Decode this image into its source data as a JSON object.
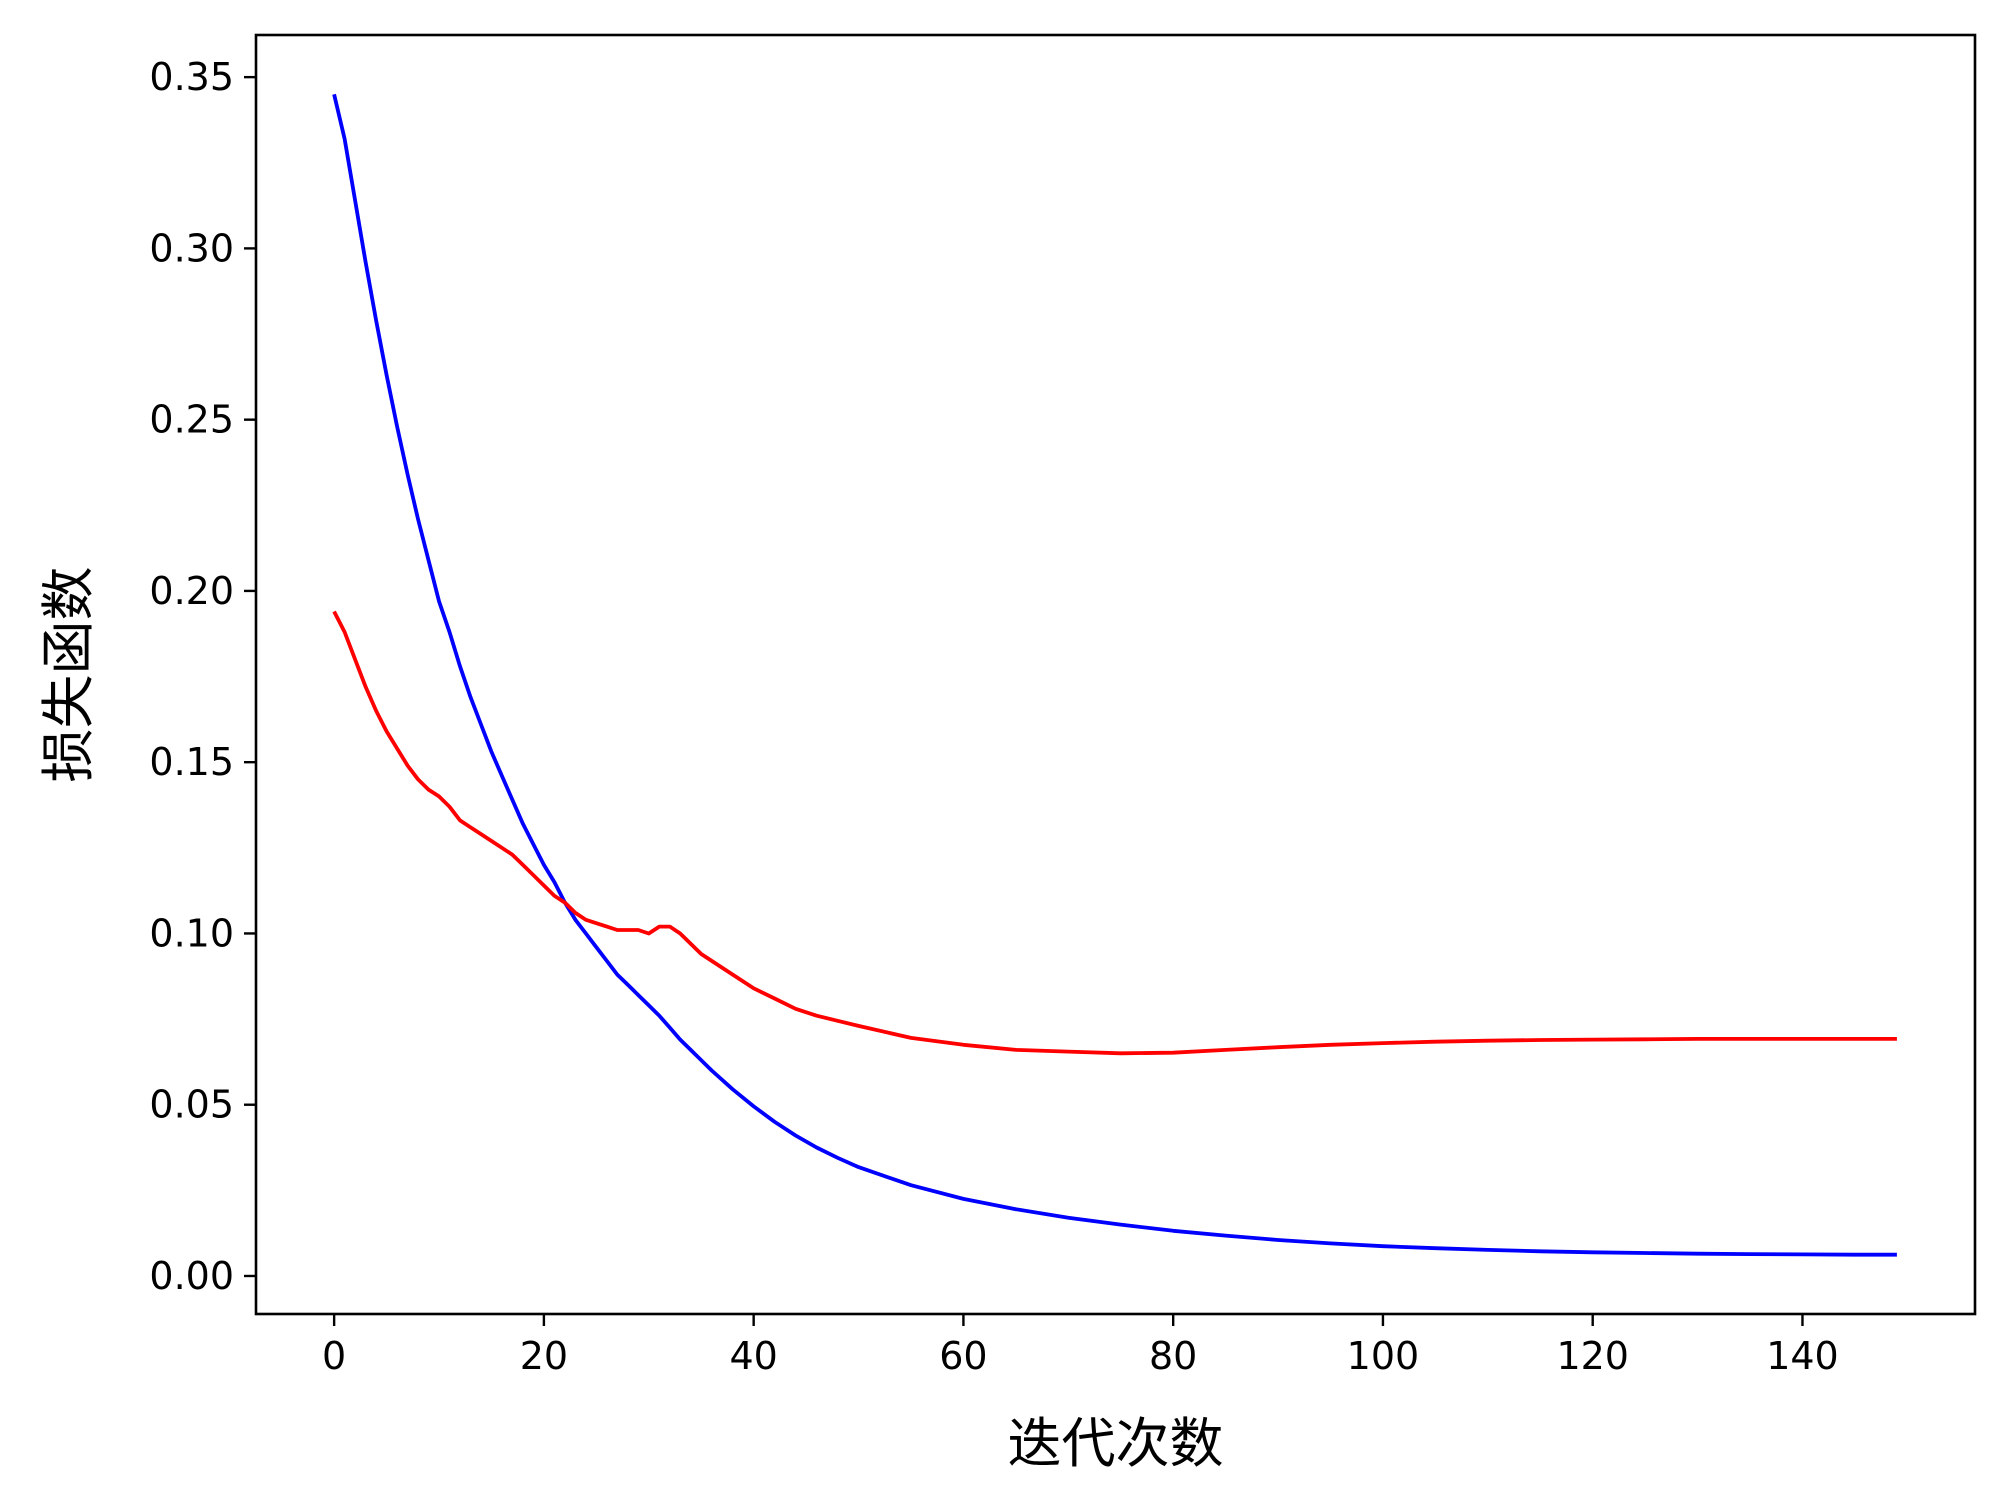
{
  "chart_data": {
    "type": "line",
    "title": "",
    "xlabel": "迭代次数",
    "ylabel": "损失函数",
    "xlim": [
      -7.45,
      156.45
    ],
    "ylim": [
      -0.0111,
      0.3623
    ],
    "xticks": [
      0,
      20,
      40,
      60,
      80,
      100,
      120,
      140
    ],
    "xtick_labels": [
      "0",
      "20",
      "40",
      "60",
      "80",
      "100",
      "120",
      "140"
    ],
    "yticks": [
      0.0,
      0.05,
      0.1,
      0.15,
      0.2,
      0.25,
      0.3,
      0.35
    ],
    "ytick_labels": [
      "0.00",
      "0.05",
      "0.10",
      "0.15",
      "0.20",
      "0.25",
      "0.30",
      "0.35"
    ],
    "grid": false,
    "legend": "none",
    "series": [
      {
        "color": "#0000ff",
        "x": [
          0,
          1,
          2,
          3,
          4,
          5,
          6,
          7,
          8,
          9,
          10,
          11,
          12,
          13,
          14,
          15,
          16,
          17,
          18,
          19,
          20,
          21,
          22,
          23,
          24,
          25,
          26,
          27,
          28,
          29,
          30,
          31,
          32,
          33,
          34,
          35,
          36,
          38,
          40,
          42,
          44,
          46,
          48,
          50,
          55,
          60,
          65,
          70,
          75,
          80,
          85,
          90,
          95,
          100,
          105,
          110,
          115,
          120,
          125,
          130,
          135,
          140,
          145,
          149
        ],
        "y": [
          0.345,
          0.332,
          0.314,
          0.296,
          0.279,
          0.263,
          0.248,
          0.234,
          0.221,
          0.209,
          0.197,
          0.188,
          0.178,
          0.169,
          0.161,
          0.153,
          0.146,
          0.139,
          0.132,
          0.126,
          0.12,
          0.115,
          0.109,
          0.104,
          0.1,
          0.096,
          0.092,
          0.088,
          0.085,
          0.082,
          0.079,
          0.076,
          0.0725,
          0.069,
          0.066,
          0.063,
          0.06,
          0.0545,
          0.0495,
          0.045,
          0.041,
          0.0375,
          0.0345,
          0.0318,
          0.0265,
          0.0225,
          0.0195,
          0.017,
          0.015,
          0.0132,
          0.0118,
          0.0105,
          0.0095,
          0.0087,
          0.0081,
          0.0076,
          0.0072,
          0.0069,
          0.0067,
          0.0065,
          0.0064,
          0.0063,
          0.0062,
          0.0062
        ]
      },
      {
        "color": "#ff0000",
        "x": [
          0,
          1,
          2,
          3,
          4,
          5,
          6,
          7,
          8,
          9,
          10,
          11,
          12,
          13,
          14,
          15,
          16,
          17,
          18,
          19,
          20,
          21,
          22,
          23,
          24,
          25,
          26,
          27,
          28,
          29,
          30,
          31,
          32,
          33,
          34,
          35,
          36,
          38,
          40,
          42,
          44,
          46,
          48,
          50,
          55,
          60,
          65,
          70,
          75,
          80,
          85,
          90,
          95,
          100,
          105,
          110,
          115,
          120,
          125,
          130,
          135,
          140,
          145,
          149
        ],
        "y": [
          0.194,
          0.188,
          0.18,
          0.172,
          0.165,
          0.159,
          0.154,
          0.149,
          0.145,
          0.142,
          0.14,
          0.137,
          0.133,
          0.131,
          0.129,
          0.127,
          0.125,
          0.123,
          0.12,
          0.117,
          0.114,
          0.111,
          0.109,
          0.106,
          0.104,
          0.103,
          0.102,
          0.101,
          0.101,
          0.101,
          0.1,
          0.102,
          0.102,
          0.1,
          0.097,
          0.094,
          0.092,
          0.088,
          0.084,
          0.081,
          0.078,
          0.076,
          0.0745,
          0.073,
          0.0695,
          0.0675,
          0.066,
          0.0655,
          0.065,
          0.0652,
          0.066,
          0.0668,
          0.0675,
          0.068,
          0.0684,
          0.0687,
          0.0689,
          0.069,
          0.0691,
          0.0692,
          0.0692,
          0.0692,
          0.0692,
          0.0692
        ]
      }
    ]
  }
}
